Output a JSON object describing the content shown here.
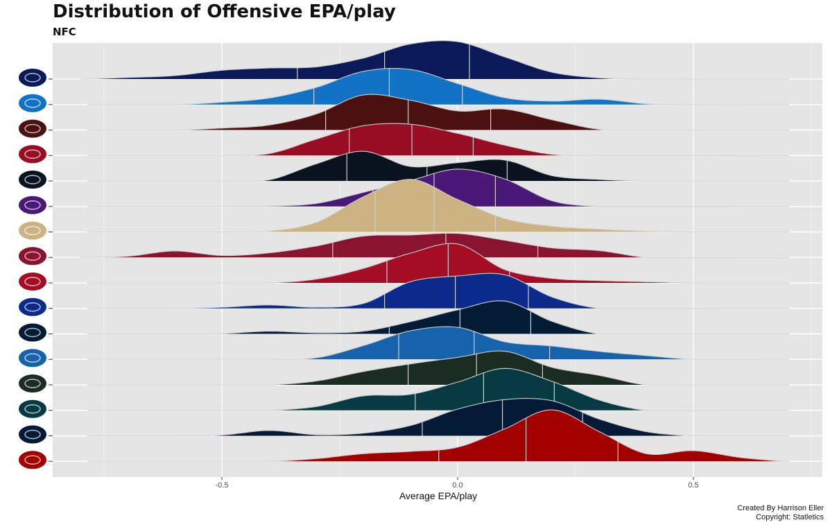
{
  "chart_data": {
    "type": "area",
    "subtype": "ridgeline",
    "title": "Distribution of Offensive EPA/play",
    "subtitle": "NFC",
    "xlabel": "Average EPA/play",
    "ylabel": "",
    "xlim": [
      -0.72,
      0.77
    ],
    "x_ticks": [
      -0.5,
      0.0,
      0.5
    ],
    "x_tick_labels": [
      "-0.5",
      "0.0",
      "0.5"
    ],
    "quantile_lines": [
      0.25,
      0.5,
      0.75
    ],
    "grid": true,
    "background": "#e5e5e5",
    "caption": [
      "Created By Harrison Eller",
      "Copyright: Statletics"
    ],
    "series": [
      {
        "team": "New York Giants",
        "icon": "giants-logo-icon",
        "fill": "#0c1958",
        "x": [
          -0.8,
          -0.7,
          -0.6,
          -0.5,
          -0.4,
          -0.3,
          -0.2,
          -0.1,
          0.0,
          0.1,
          0.2,
          0.3,
          0.4
        ],
        "density": [
          0.0,
          0.04,
          0.09,
          0.23,
          0.29,
          0.32,
          0.55,
          0.92,
          0.98,
          0.58,
          0.18,
          0.03,
          0.0
        ],
        "quantiles": [
          -0.34,
          -0.155,
          0.025
        ]
      },
      {
        "team": "Carolina Panthers",
        "icon": "panthers-logo-icon",
        "fill": "#1272c5",
        "x": [
          -0.6,
          -0.5,
          -0.4,
          -0.3,
          -0.2,
          -0.1,
          0.0,
          0.1,
          0.2,
          0.3,
          0.4,
          0.5
        ],
        "density": [
          0.0,
          0.06,
          0.17,
          0.45,
          0.87,
          0.92,
          0.55,
          0.18,
          0.09,
          0.14,
          0.02,
          0.0
        ],
        "quantiles": [
          -0.305,
          -0.145,
          0.01
        ]
      },
      {
        "team": "Washington Commanders",
        "icon": "commanders-logo-icon",
        "fill": "#4b1010",
        "x": [
          -0.6,
          -0.5,
          -0.4,
          -0.3,
          -0.2,
          -0.1,
          0.0,
          0.1,
          0.2,
          0.3,
          0.4
        ],
        "density": [
          0.0,
          0.05,
          0.13,
          0.42,
          0.92,
          0.78,
          0.5,
          0.55,
          0.27,
          0.02,
          0.0
        ],
        "quantiles": [
          -0.28,
          -0.105,
          0.07
        ]
      },
      {
        "team": "Atlanta Falcons",
        "icon": "falcons-logo-icon",
        "fill": "#980c24",
        "x": [
          -0.5,
          -0.4,
          -0.3,
          -0.2,
          -0.1,
          0.0,
          0.1,
          0.2,
          0.3
        ],
        "density": [
          0.0,
          0.05,
          0.43,
          0.78,
          0.82,
          0.58,
          0.27,
          0.03,
          0.0
        ],
        "quantiles": [
          -0.23,
          -0.097,
          0.033
        ]
      },
      {
        "team": "Chicago Bears",
        "icon": "bears-logo-icon",
        "fill": "#0b1220",
        "x": [
          -0.5,
          -0.4,
          -0.3,
          -0.2,
          -0.1,
          0.0,
          0.1,
          0.2,
          0.3,
          0.4
        ],
        "density": [
          0.0,
          0.03,
          0.45,
          0.78,
          0.38,
          0.48,
          0.55,
          0.14,
          0.04,
          0.0
        ],
        "quantiles": [
          -0.235,
          -0.065,
          0.105
        ]
      },
      {
        "team": "Minnesota Vikings",
        "icon": "vikings-logo-icon",
        "fill": "#4a1877",
        "x": [
          -0.5,
          -0.4,
          -0.3,
          -0.2,
          -0.1,
          0.0,
          0.1,
          0.2,
          0.3
        ],
        "density": [
          0.0,
          0.01,
          0.08,
          0.37,
          0.68,
          0.98,
          0.72,
          0.15,
          0.0
        ],
        "quantiles": [
          -0.18,
          -0.05,
          0.08
        ]
      },
      {
        "team": "New Orleans Saints",
        "icon": "saints-logo-icon",
        "fill": "#cdb382",
        "x": [
          -0.5,
          -0.4,
          -0.3,
          -0.2,
          -0.1,
          0.0,
          0.1,
          0.2,
          0.3,
          0.4,
          0.5
        ],
        "density": [
          0.0,
          0.02,
          0.25,
          0.92,
          1.38,
          0.85,
          0.35,
          0.15,
          0.07,
          0.02,
          0.0
        ],
        "quantiles": [
          -0.175,
          -0.05,
          0.08
        ]
      },
      {
        "team": "Arizona Cardinals",
        "icon": "cardinals-logo-icon",
        "fill": "#8a1430",
        "x": [
          -0.8,
          -0.7,
          -0.6,
          -0.5,
          -0.4,
          -0.3,
          -0.2,
          -0.1,
          0.0,
          0.1,
          0.2,
          0.3,
          0.4
        ],
        "density": [
          0.0,
          0.03,
          0.17,
          0.05,
          0.12,
          0.3,
          0.56,
          0.59,
          0.63,
          0.45,
          0.25,
          0.18,
          0.0
        ],
        "quantiles": [
          -0.265,
          -0.025,
          0.17
        ]
      },
      {
        "team": "Tampa Bay Buccaneers",
        "icon": "buccaneers-logo-icon",
        "fill": "#a50d25",
        "x": [
          -0.4,
          -0.3,
          -0.2,
          -0.1,
          0.0,
          0.1,
          0.2,
          0.3,
          0.4,
          0.5
        ],
        "density": [
          0.0,
          0.1,
          0.38,
          0.78,
          1.02,
          0.35,
          0.12,
          0.06,
          0.03,
          0.0
        ],
        "quantiles": [
          -0.15,
          -0.02,
          0.11
        ]
      },
      {
        "team": "Los Angeles Rams",
        "icon": "rams-logo-icon",
        "fill": "#0b2a8c",
        "x": [
          -0.6,
          -0.5,
          -0.4,
          -0.3,
          -0.2,
          -0.1,
          0.0,
          0.1,
          0.2,
          0.3
        ],
        "density": [
          0.0,
          0.03,
          0.09,
          0.03,
          0.13,
          0.7,
          0.85,
          0.88,
          0.3,
          0.0
        ],
        "quantiles": [
          -0.155,
          -0.005,
          0.15
        ]
      },
      {
        "team": "Seattle Seahawks",
        "icon": "seahawks-logo-icon",
        "fill": "#041b36",
        "x": [
          -0.6,
          -0.5,
          -0.4,
          -0.3,
          -0.2,
          -0.1,
          0.0,
          0.1,
          0.2,
          0.3
        ],
        "density": [
          0.0,
          0.01,
          0.07,
          0.03,
          0.07,
          0.32,
          0.63,
          0.86,
          0.33,
          0.0
        ],
        "quantiles": [
          -0.145,
          0.005,
          0.155
        ]
      },
      {
        "team": "Detroit Lions",
        "icon": "lions-logo-icon",
        "fill": "#1762ac",
        "x": [
          -0.4,
          -0.3,
          -0.2,
          -0.1,
          0.0,
          0.1,
          0.2,
          0.3,
          0.4,
          0.5
        ],
        "density": [
          0.0,
          0.04,
          0.36,
          0.75,
          0.84,
          0.46,
          0.35,
          0.21,
          0.1,
          0.0
        ],
        "quantiles": [
          -0.125,
          0.035,
          0.195
        ]
      },
      {
        "team": "Green Bay Packers",
        "icon": "packers-logo-icon",
        "fill": "#1b2c22",
        "x": [
          -0.4,
          -0.3,
          -0.2,
          -0.1,
          0.0,
          0.1,
          0.2,
          0.3,
          0.4
        ],
        "density": [
          0.0,
          0.1,
          0.35,
          0.55,
          0.72,
          0.88,
          0.46,
          0.25,
          0.0
        ],
        "quantiles": [
          -0.105,
          0.04,
          0.18
        ]
      },
      {
        "team": "Philadelphia Eagles",
        "icon": "eagles-logo-icon",
        "fill": "#073a42",
        "x": [
          -0.4,
          -0.3,
          -0.2,
          -0.1,
          0.0,
          0.1,
          0.2,
          0.3,
          0.4
        ],
        "density": [
          0.0,
          0.1,
          0.38,
          0.42,
          0.74,
          1.1,
          0.76,
          0.27,
          0.0
        ],
        "quantiles": [
          -0.09,
          0.055,
          0.205
        ]
      },
      {
        "team": "Dallas Cowboys",
        "icon": "cowboys-logo-icon",
        "fill": "#041a36",
        "x": [
          -0.6,
          -0.5,
          -0.4,
          -0.3,
          -0.2,
          -0.1,
          0.0,
          0.1,
          0.2,
          0.3,
          0.4,
          0.5
        ],
        "density": [
          0.0,
          0.02,
          0.14,
          0.03,
          0.07,
          0.27,
          0.7,
          0.95,
          0.92,
          0.44,
          0.11,
          0.0
        ],
        "quantiles": [
          -0.075,
          0.095,
          0.265
        ]
      },
      {
        "team": "San Francisco 49ers",
        "icon": "49ers-logo-icon",
        "fill": "#a30000",
        "x": [
          -0.4,
          -0.3,
          -0.2,
          -0.1,
          0.0,
          0.1,
          0.2,
          0.3,
          0.4,
          0.5,
          0.6,
          0.7
        ],
        "density": [
          0.0,
          0.07,
          0.2,
          0.26,
          0.37,
          0.85,
          1.35,
          0.78,
          0.2,
          0.28,
          0.1,
          0.0
        ],
        "quantiles": [
          -0.04,
          0.145,
          0.34
        ]
      }
    ]
  }
}
